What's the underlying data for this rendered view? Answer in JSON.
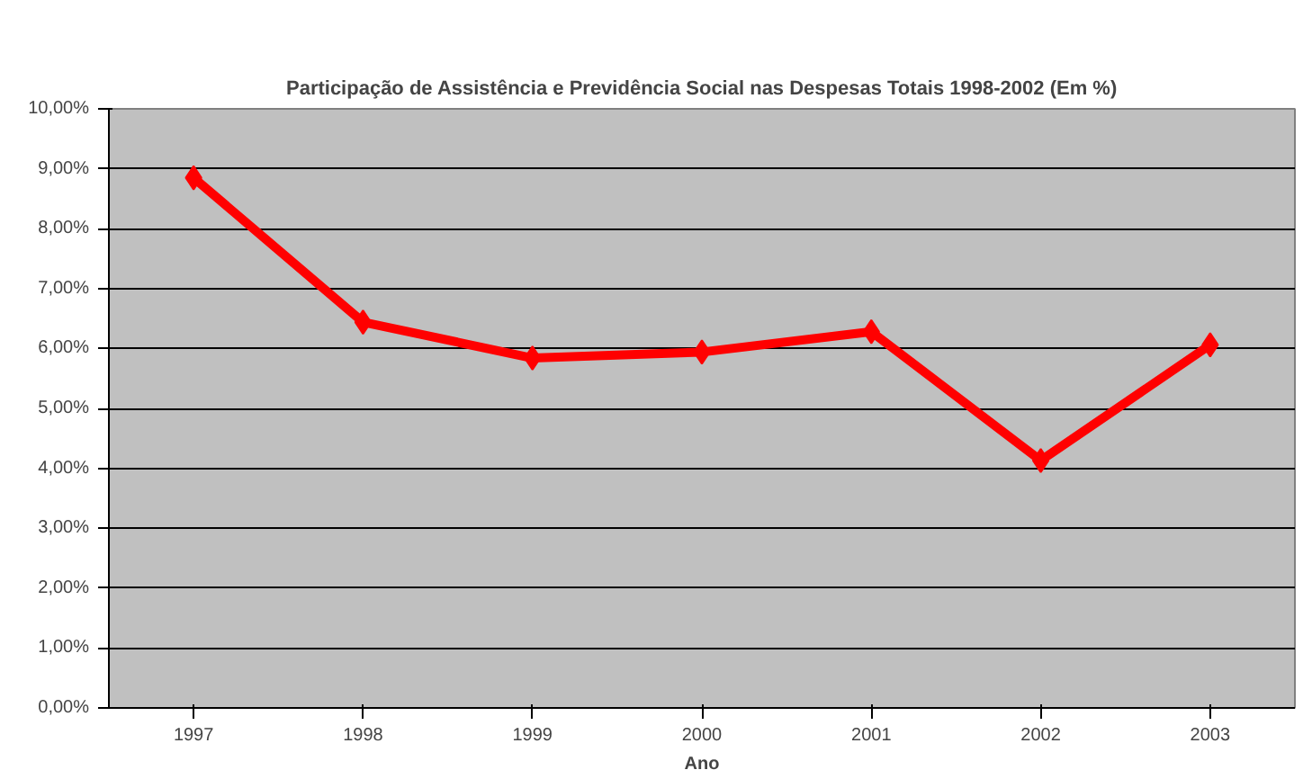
{
  "chart_data": {
    "type": "line",
    "title": "Participação de Assistência e Previdência Social nas Despesas Totais 1998-2002 (Em %)",
    "xlabel": "Ano",
    "categories": [
      "1997",
      "1998",
      "1999",
      "2000",
      "2001",
      "2002",
      "2003"
    ],
    "series": [
      {
        "color": "#ff0000",
        "values": [
          8.85,
          6.44,
          5.84,
          5.94,
          6.28,
          4.13,
          6.06
        ]
      }
    ],
    "ylim": [
      0,
      10
    ],
    "yticks": [
      {
        "value": 0,
        "label": "0,00%"
      },
      {
        "value": 1,
        "label": "1,00%"
      },
      {
        "value": 2,
        "label": "2,00%"
      },
      {
        "value": 3,
        "label": "3,00%"
      },
      {
        "value": 4,
        "label": "4,00%"
      },
      {
        "value": 5,
        "label": "5,00%"
      },
      {
        "value": 6,
        "label": "6,00%"
      },
      {
        "value": 7,
        "label": "7,00%"
      },
      {
        "value": 8,
        "label": "8,00%"
      },
      {
        "value": 9,
        "label": "9,00%"
      },
      {
        "value": 10,
        "label": "10,00%"
      }
    ],
    "grid": "y",
    "marker": "diamond",
    "line_style": "solid"
  }
}
